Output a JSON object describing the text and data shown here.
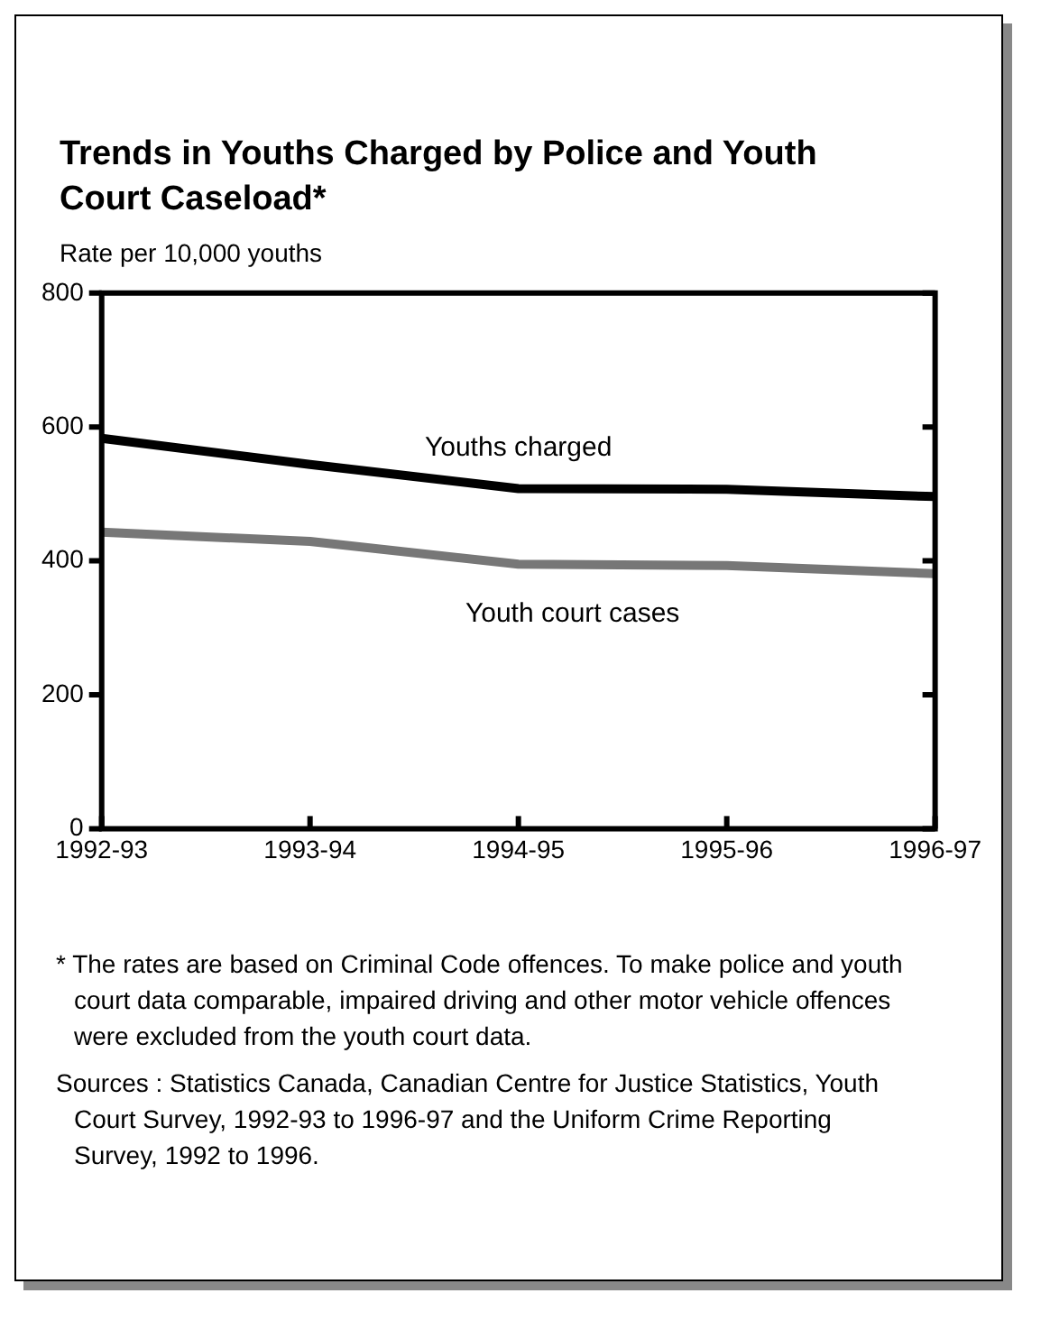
{
  "chart_data": {
    "type": "line",
    "title": "Trends in Youths Charged by Police and Youth Court Caseload*",
    "ylabel": "Rate per 10,000 youths",
    "categories": [
      "1992-93",
      "1993-94",
      "1994-95",
      "1995-96",
      "1996-97"
    ],
    "series": [
      {
        "name": "Youths charged",
        "color": "#000000",
        "values": [
          583,
          544,
          508,
          507,
          496
        ]
      },
      {
        "name": "Youth court cases",
        "color": "#777777",
        "values": [
          443,
          429,
          395,
          393,
          381
        ]
      }
    ],
    "ylim": [
      0,
      800
    ],
    "yticks": [
      0,
      200,
      400,
      600,
      800
    ],
    "grid": false,
    "legend": false,
    "marker": "none",
    "line_style": "solid",
    "annotations": [
      "* The rates are based on Criminal Code offences.  To make police and youth court data comparable, impaired driving and other motor vehicle offences were excluded from the youth court data.",
      "Sources : Statistics Canada, Canadian Centre for Justice Statistics, Youth Court Survey, 1992-93  to 1996-97 and the Uniform Crime Reporting Survey, 1992 to 1996."
    ]
  }
}
